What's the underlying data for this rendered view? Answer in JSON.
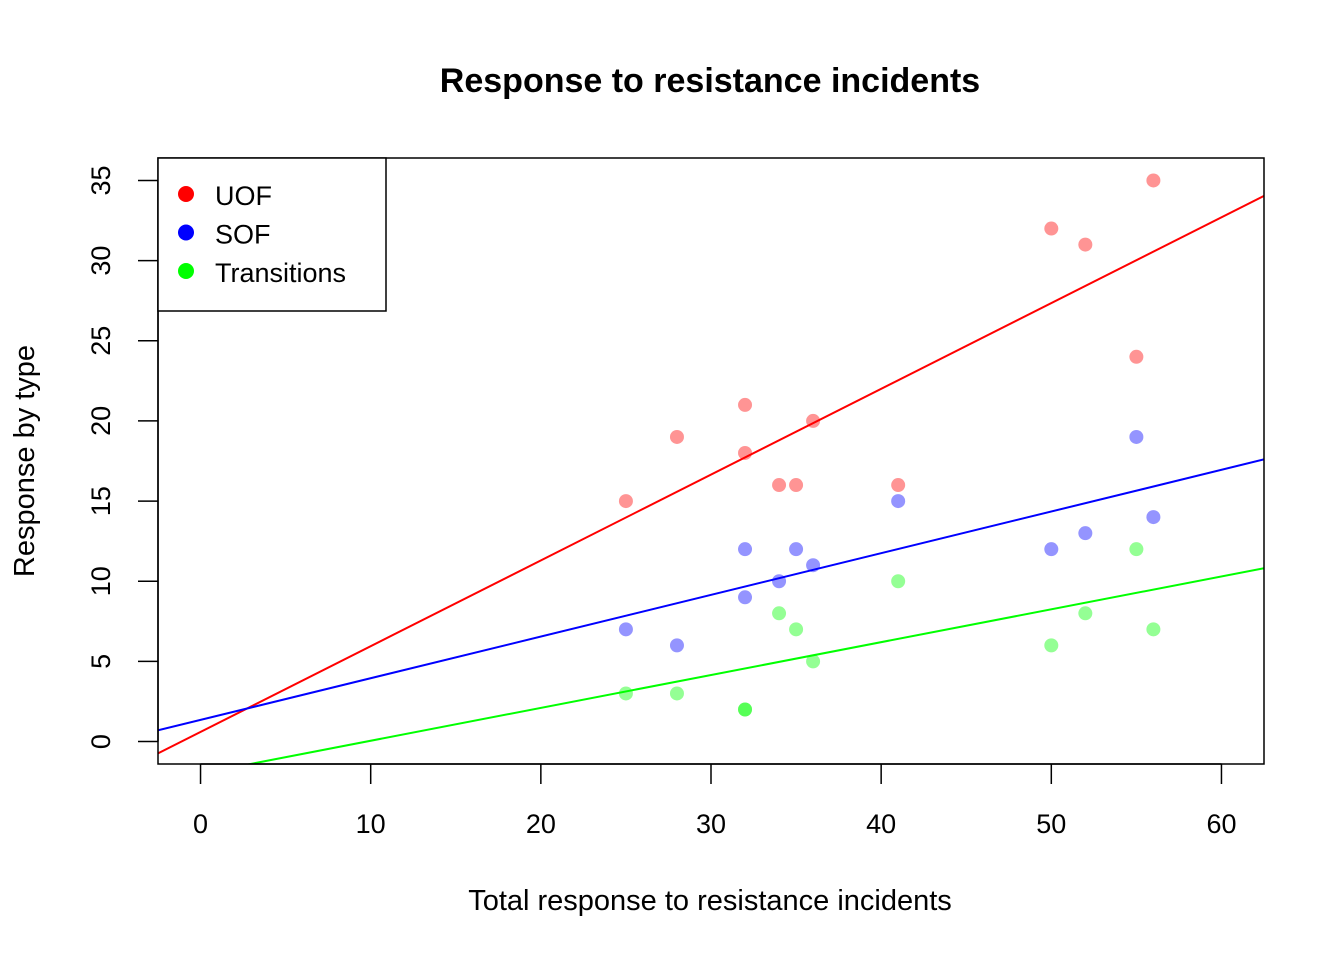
{
  "chart_data": {
    "type": "scatter",
    "title": "Response to resistance incidents",
    "xlabel": "Total response to resistance incidents",
    "ylabel": "Response by type",
    "xlim": [
      -2.5,
      62.5
    ],
    "ylim": [
      -1.4,
      36.4
    ],
    "x_ticks": [
      0,
      10,
      20,
      30,
      40,
      50,
      60
    ],
    "y_ticks": [
      0,
      5,
      10,
      15,
      20,
      25,
      30,
      35
    ],
    "grid": false,
    "legend_position": "top-left",
    "series": [
      {
        "name": "UOF",
        "color": "#ff0000",
        "points": [
          [
            25,
            15
          ],
          [
            28,
            19
          ],
          [
            32,
            21
          ],
          [
            32,
            18
          ],
          [
            34,
            16
          ],
          [
            35,
            16
          ],
          [
            36,
            20
          ],
          [
            41,
            16
          ],
          [
            50,
            32
          ],
          [
            52,
            31
          ],
          [
            55,
            24
          ],
          [
            56,
            35
          ]
        ],
        "fit": {
          "intercept": 0.6,
          "slope": 0.535
        }
      },
      {
        "name": "SOF",
        "color": "#0000ff",
        "points": [
          [
            25,
            7
          ],
          [
            28,
            6
          ],
          [
            32,
            12
          ],
          [
            32,
            9
          ],
          [
            34,
            10
          ],
          [
            35,
            12
          ],
          [
            36,
            11
          ],
          [
            41,
            15
          ],
          [
            50,
            12
          ],
          [
            52,
            13
          ],
          [
            55,
            19
          ],
          [
            56,
            14
          ]
        ],
        "fit": {
          "intercept": 1.35,
          "slope": 0.26
        }
      },
      {
        "name": "Transitions",
        "color": "#00ff00",
        "points": [
          [
            25,
            3
          ],
          [
            28,
            3
          ],
          [
            32,
            2
          ],
          [
            32,
            2
          ],
          [
            34,
            8
          ],
          [
            35,
            7
          ],
          [
            36,
            5
          ],
          [
            41,
            10
          ],
          [
            50,
            6
          ],
          [
            52,
            8
          ],
          [
            55,
            12
          ],
          [
            56,
            7
          ]
        ],
        "fit": {
          "intercept": -2.0,
          "slope": 0.205
        }
      }
    ]
  }
}
